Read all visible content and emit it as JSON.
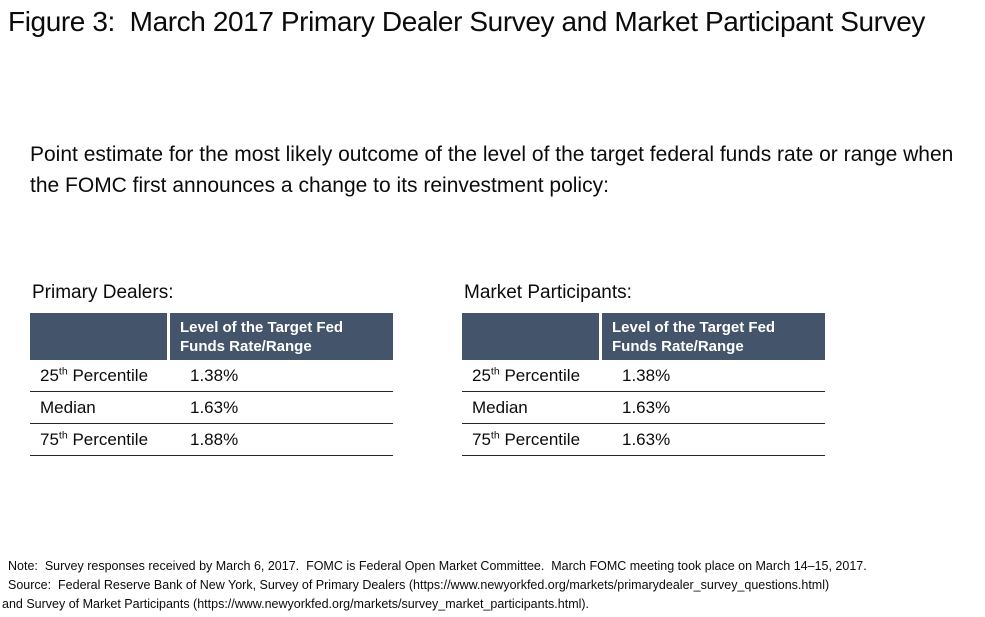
{
  "figure": {
    "title": "Figure 3:  March 2017 Primary Dealer Survey and Market Participant Survey",
    "prompt": "Point estimate for the most likely outcome of the level of the target federal funds rate or range when the FOMC first announces a change to its reinvestment policy:"
  },
  "tables": [
    {
      "caption": "Primary Dealers:",
      "value_header": "Level of the Target Fed Funds Rate/Range",
      "rows": [
        {
          "label_base": "25",
          "label_sup": "th",
          "label_rest": " Percentile",
          "value": "1.38%"
        },
        {
          "label_base": "Median",
          "label_sup": "",
          "label_rest": "",
          "value": "1.63%"
        },
        {
          "label_base": "75",
          "label_sup": "th",
          "label_rest": " Percentile",
          "value": "1.88%"
        }
      ]
    },
    {
      "caption": "Market Participants:",
      "value_header": "Level of the Target Fed Funds Rate/Range",
      "rows": [
        {
          "label_base": "25",
          "label_sup": "th",
          "label_rest": " Percentile",
          "value": "1.38%"
        },
        {
          "label_base": "Median",
          "label_sup": "",
          "label_rest": "",
          "value": "1.63%"
        },
        {
          "label_base": "75",
          "label_sup": "th",
          "label_rest": " Percentile",
          "value": "1.63%"
        }
      ]
    }
  ],
  "notes": {
    "note": "Note:  Survey responses received by March 6, 2017.  FOMC is Federal Open Market Committee.  March FOMC meeting took place on March 14–15, 2017.",
    "source_line1": "Source:  Federal Reserve Bank of New York, Survey of Primary Dealers (https://www.newyorkfed.org/markets/primarydealer_survey_questions.html)",
    "source_line2": "and Survey of Market Participants (https://www.newyorkfed.org/markets/survey_market_participants.html)."
  },
  "colors": {
    "header_bg": "#44546A",
    "header_text": "#FFFFFF",
    "row_line": "#262626"
  }
}
